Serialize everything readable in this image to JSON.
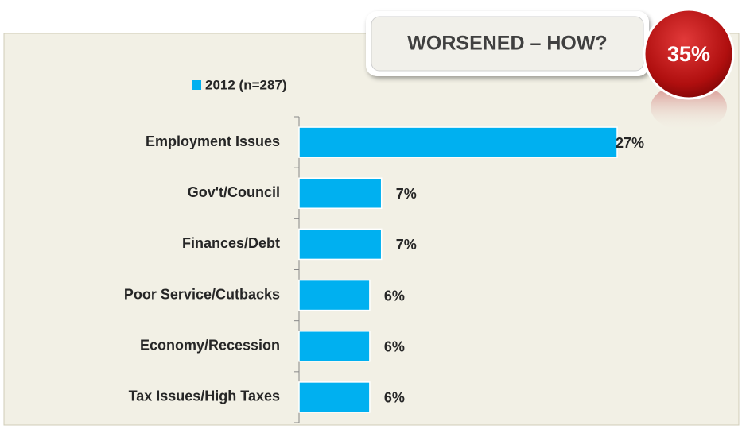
{
  "chart_data": {
    "type": "bar",
    "orientation": "horizontal",
    "title": "WORSENED – HOW?",
    "annotation": "35%",
    "categories": [
      "Employment Issues",
      "Gov't/Council",
      "Finances/Debt",
      "Poor Service/Cutbacks",
      "Economy/Recession",
      "Tax Issues/High Taxes"
    ],
    "series": [
      {
        "name": "2012 (n=287)",
        "color": "#00b0f0",
        "values": [
          27,
          7,
          7,
          6,
          6,
          6
        ],
        "value_labels": [
          "27%",
          "7%",
          "7%",
          "6%",
          "6%",
          "6%"
        ]
      }
    ]
  }
}
